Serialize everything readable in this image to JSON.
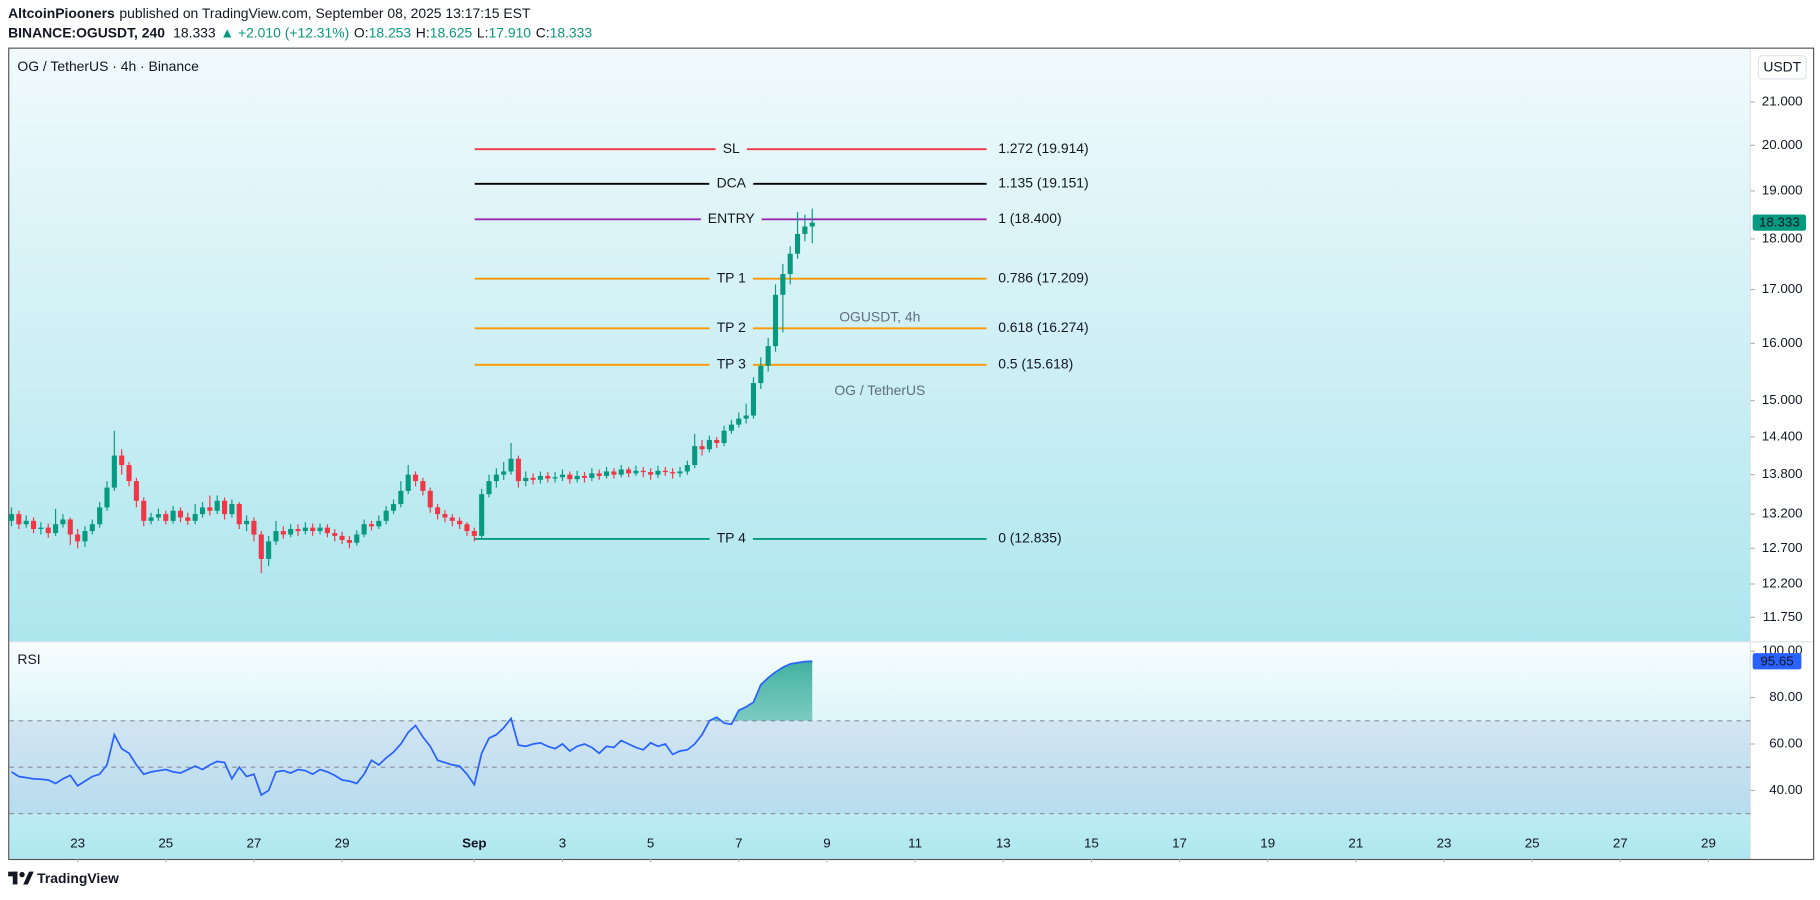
{
  "header": {
    "author": "AltcoinPiooners",
    "published": "published on TradingView.com, September 08, 2025 13:17:15 EST",
    "symbol": "BINANCE:OGUSDT, 240",
    "last": "18.333",
    "change": "▲ +2.010 (+12.31%)",
    "ohlc": [
      {
        "key": "O:",
        "value": "18.253"
      },
      {
        "key": "H:",
        "value": "18.625"
      },
      {
        "key": "L:",
        "value": "17.910"
      },
      {
        "key": "C:",
        "value": "18.333"
      }
    ]
  },
  "footer": {
    "brand": "TradingView"
  },
  "chart_data": [
    {
      "type": "candlestick",
      "title": "OG / TetherUS · 4h · Binance",
      "watermark": "OGUSDT, 4h",
      "watermark_sub": "OG / TetherUS",
      "currency": "USDT",
      "up_color": "#089981",
      "down_color": "#f23645",
      "log_y": true,
      "ylim": [
        11.43,
        22.3
      ],
      "yticks": [
        {
          "value": 11.75,
          "label": "11.750"
        },
        {
          "value": 12.2,
          "label": "12.200"
        },
        {
          "value": 12.7,
          "label": "12.700"
        },
        {
          "value": 13.2,
          "label": "13.200"
        },
        {
          "value": 13.8,
          "label": "13.800"
        },
        {
          "value": 14.4,
          "label": "14.400"
        },
        {
          "value": 15,
          "label": "15.000"
        },
        {
          "value": 16,
          "label": "16.000"
        },
        {
          "value": 17,
          "label": "17.000"
        },
        {
          "value": 18,
          "label": "18.000"
        },
        {
          "value": 19,
          "label": "19.000"
        },
        {
          "value": 20,
          "label": "20.000"
        },
        {
          "value": 21,
          "label": "21.000"
        }
      ],
      "xlim": [
        -0.3,
        236.7
      ],
      "xticks": [
        {
          "value": 9,
          "label": "23"
        },
        {
          "value": 21,
          "label": "25"
        },
        {
          "value": 33,
          "label": "27"
        },
        {
          "value": 45,
          "label": "29"
        },
        {
          "value": 63,
          "label": "Sep"
        },
        {
          "value": 75,
          "label": "3"
        },
        {
          "value": 87,
          "label": "5"
        },
        {
          "value": 99,
          "label": "7"
        },
        {
          "value": 111,
          "label": "9"
        },
        {
          "value": 123,
          "label": "11"
        },
        {
          "value": 135,
          "label": "13"
        },
        {
          "value": 147,
          "label": "15"
        },
        {
          "value": 159,
          "label": "17"
        },
        {
          "value": 171,
          "label": "19"
        },
        {
          "value": 183,
          "label": "21"
        },
        {
          "value": 195,
          "label": "23"
        },
        {
          "value": 207,
          "label": "25"
        },
        {
          "value": 219,
          "label": "27"
        },
        {
          "value": 231,
          "label": "29"
        }
      ],
      "open": [
        13.1,
        13.2,
        13.05,
        13.1,
        12.98,
        13.0,
        12.92,
        13.05,
        13.12,
        12.9,
        12.8,
        12.95,
        13.05,
        13.3,
        13.6,
        14.1,
        13.95,
        13.7,
        13.4,
        13.1,
        13.15,
        13.2,
        13.1,
        13.25,
        13.15,
        13.1,
        13.2,
        13.3,
        13.25,
        13.4,
        13.2,
        13.35,
        13.05,
        13.1,
        12.9,
        12.55,
        12.8,
        12.95,
        12.9,
        12.98,
        12.95,
        13.0,
        12.95,
        13.0,
        12.92,
        12.88,
        12.82,
        12.78,
        12.9,
        13.05,
        13.02,
        13.1,
        13.25,
        13.35,
        13.55,
        13.8,
        13.7,
        13.55,
        13.3,
        13.2,
        13.15,
        13.1,
        13.05,
        12.95,
        12.88,
        13.5,
        13.7,
        13.8,
        13.85,
        14.05,
        13.7,
        13.75,
        13.72,
        13.78,
        13.74,
        13.76,
        13.8,
        13.73,
        13.78,
        13.75,
        13.82,
        13.78,
        13.85,
        13.8,
        13.88,
        13.82,
        13.86,
        13.84,
        13.8,
        13.86,
        13.84,
        13.82,
        13.85,
        13.95,
        14.25,
        14.2,
        14.35,
        14.3,
        14.5,
        14.6,
        14.7,
        14.75,
        15.3,
        15.6,
        15.95,
        16.9,
        17.3,
        17.7,
        18.1,
        18.253
      ],
      "high": [
        13.3,
        13.25,
        13.18,
        13.15,
        13.08,
        13.06,
        13.28,
        13.2,
        13.15,
        12.98,
        13.02,
        13.12,
        13.38,
        13.7,
        14.5,
        14.2,
        14.0,
        13.75,
        13.45,
        13.22,
        13.28,
        13.25,
        13.32,
        13.3,
        13.22,
        13.35,
        13.38,
        13.48,
        13.48,
        13.45,
        13.42,
        13.38,
        13.18,
        13.15,
        12.95,
        12.88,
        13.1,
        13.02,
        13.05,
        13.05,
        13.08,
        13.06,
        13.06,
        13.05,
        12.98,
        12.94,
        12.88,
        12.96,
        13.12,
        13.1,
        13.18,
        13.32,
        13.42,
        13.7,
        13.95,
        13.85,
        13.75,
        13.6,
        13.35,
        13.26,
        13.2,
        13.15,
        13.08,
        13.0,
        13.58,
        13.8,
        13.9,
        14.0,
        14.3,
        14.1,
        13.85,
        13.82,
        13.85,
        13.84,
        13.84,
        13.88,
        13.85,
        13.86,
        13.84,
        13.9,
        13.88,
        13.92,
        13.9,
        13.95,
        13.92,
        13.94,
        13.92,
        13.9,
        13.94,
        13.92,
        13.9,
        13.92,
        14.02,
        14.45,
        14.35,
        14.42,
        14.4,
        14.58,
        14.68,
        14.8,
        14.95,
        15.4,
        15.75,
        16.1,
        17.1,
        17.5,
        17.85,
        18.55,
        18.5,
        18.625
      ],
      "low": [
        13.02,
        12.98,
        13.0,
        12.92,
        12.9,
        12.85,
        12.88,
        13.0,
        12.75,
        12.7,
        12.72,
        12.9,
        13.0,
        13.25,
        13.55,
        13.8,
        13.62,
        13.3,
        13.02,
        13.05,
        13.1,
        13.05,
        13.06,
        13.08,
        13.04,
        13.05,
        13.15,
        13.18,
        13.2,
        13.12,
        13.15,
        12.98,
        12.95,
        12.8,
        12.35,
        12.45,
        12.75,
        12.84,
        12.86,
        12.88,
        12.9,
        12.88,
        12.9,
        12.86,
        12.8,
        12.76,
        12.7,
        12.74,
        12.86,
        12.96,
        12.98,
        13.05,
        13.2,
        13.3,
        13.5,
        13.62,
        13.48,
        13.22,
        13.12,
        13.08,
        13.02,
        12.98,
        12.88,
        12.8,
        12.85,
        13.45,
        13.6,
        13.72,
        13.8,
        13.6,
        13.62,
        13.65,
        13.66,
        13.68,
        13.68,
        13.7,
        13.66,
        13.68,
        13.68,
        13.7,
        13.72,
        13.74,
        13.74,
        13.76,
        13.76,
        13.78,
        13.76,
        13.72,
        13.75,
        13.78,
        13.74,
        13.76,
        13.8,
        13.9,
        14.1,
        14.15,
        14.22,
        14.25,
        14.45,
        14.55,
        14.62,
        14.7,
        15.2,
        15.5,
        15.85,
        16.2,
        17.1,
        17.6,
        17.95,
        17.91
      ],
      "close": [
        13.2,
        13.05,
        13.1,
        12.98,
        13.0,
        12.92,
        13.05,
        13.12,
        12.9,
        12.8,
        12.95,
        13.05,
        13.3,
        13.6,
        14.1,
        13.95,
        13.7,
        13.4,
        13.1,
        13.15,
        13.2,
        13.1,
        13.25,
        13.15,
        13.1,
        13.2,
        13.3,
        13.25,
        13.4,
        13.2,
        13.35,
        13.05,
        13.1,
        12.9,
        12.55,
        12.8,
        12.95,
        12.9,
        12.98,
        12.95,
        13.0,
        12.95,
        13.0,
        12.92,
        12.88,
        12.82,
        12.78,
        12.9,
        13.05,
        13.02,
        13.1,
        13.25,
        13.35,
        13.55,
        13.8,
        13.7,
        13.55,
        13.3,
        13.2,
        13.15,
        13.1,
        13.05,
        12.95,
        12.88,
        13.5,
        13.7,
        13.8,
        13.85,
        14.05,
        13.7,
        13.75,
        13.72,
        13.78,
        13.74,
        13.76,
        13.8,
        13.73,
        13.78,
        13.75,
        13.82,
        13.78,
        13.85,
        13.8,
        13.88,
        13.82,
        13.86,
        13.84,
        13.8,
        13.86,
        13.84,
        13.82,
        13.85,
        13.95,
        14.25,
        14.2,
        14.35,
        14.3,
        14.5,
        14.6,
        14.7,
        14.75,
        15.3,
        15.6,
        15.95,
        16.9,
        17.3,
        17.7,
        18.1,
        18.253,
        18.333
      ],
      "levels": [
        {
          "name": "SL",
          "label": "1.272 (19.914)",
          "value": 19.914,
          "color": "#f23645"
        },
        {
          "name": "DCA",
          "label": "1.135 (19.151)",
          "value": 19.151,
          "color": "#000000"
        },
        {
          "name": "ENTRY",
          "label": "1 (18.400)",
          "value": 18.4,
          "color": "#9c27b0"
        },
        {
          "name": "TP 1",
          "label": "0.786 (17.209)",
          "value": 17.209,
          "color": "#ff9800"
        },
        {
          "name": "TP 2",
          "label": "0.618 (16.274)",
          "value": 16.274,
          "color": "#ff9800"
        },
        {
          "name": "TP 3",
          "label": "0.5 (15.618)",
          "value": 15.618,
          "color": "#ff9800"
        },
        {
          "name": "TP 4",
          "label": "0 (12.835)",
          "value": 12.835,
          "color": "#089981"
        }
      ]
    },
    {
      "type": "line",
      "title": "RSI",
      "color": "#2962ff",
      "fill_color": "#089981",
      "band_color": "#7e57c2",
      "ylim": [
        10.5,
        104
      ],
      "yticks": [
        {
          "value": 40,
          "label": "40.00"
        },
        {
          "value": 60,
          "label": "60.00"
        },
        {
          "value": 80,
          "label": "80.00"
        },
        {
          "value": 100,
          "label": "100.00"
        }
      ],
      "upper_band": 70,
      "middle_band": 50,
      "lower_band": 30,
      "values": [
        48,
        46,
        45.5,
        45,
        44.8,
        44.5,
        43,
        45,
        46.5,
        42,
        44,
        46,
        47,
        51,
        64,
        58,
        56,
        51,
        47,
        48,
        48.5,
        49,
        48,
        47.5,
        49,
        50.5,
        49,
        51,
        52.5,
        52,
        45,
        50,
        46,
        47,
        38,
        40,
        48,
        48.5,
        47.5,
        49,
        48.5,
        47,
        49,
        48,
        46.5,
        44.5,
        44,
        43,
        47,
        53,
        51,
        54,
        56.5,
        60,
        65,
        68,
        63,
        59,
        53,
        52,
        51,
        50.5,
        47,
        42.5,
        56,
        62.5,
        64,
        67,
        71,
        59.5,
        59,
        60,
        60.5,
        59,
        58,
        60,
        57,
        59,
        60,
        58.5,
        56,
        59,
        58.5,
        61.5,
        60,
        58.5,
        57.5,
        60.5,
        59,
        60,
        55.5,
        57,
        57.5,
        60,
        64,
        70,
        71.5,
        69,
        68.5,
        74.5,
        76,
        78,
        85.5,
        88.5,
        91,
        93,
        94.5,
        95,
        95.5,
        95.65
      ]
    }
  ]
}
